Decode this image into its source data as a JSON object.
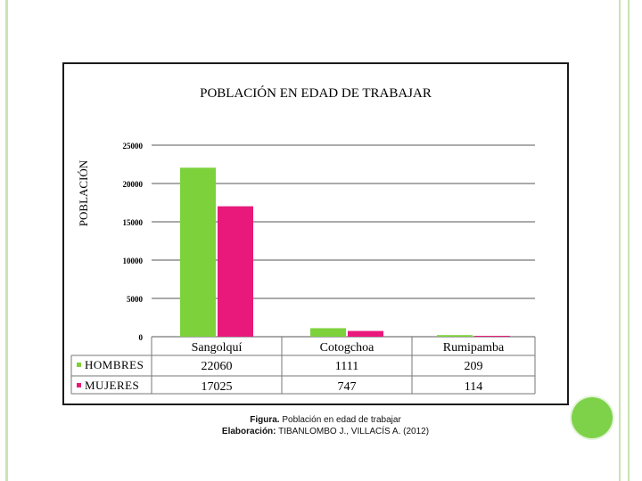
{
  "chart_data": {
    "type": "bar",
    "title": "POBLACIÓN EN EDAD DE TRABAJAR",
    "ylabel": "POBLACIÓN",
    "xlabel": "",
    "ylim": [
      0,
      25000
    ],
    "yticks": [
      0,
      5000,
      10000,
      15000,
      20000,
      25000
    ],
    "grid": true,
    "legend": "bottom-left table",
    "categories": [
      "Sangolquí",
      "Cotogchoa",
      "Rumipamba"
    ],
    "series": [
      {
        "name": "HOMBRES",
        "color": "#7dd23c",
        "values": [
          22060,
          1111,
          209
        ],
        "labels": [
          "22060",
          "1111",
          "209"
        ]
      },
      {
        "name": "MUJERES",
        "color": "#e8197a",
        "values": [
          17025,
          747,
          114
        ],
        "labels": [
          "17025",
          "747",
          "114"
        ]
      }
    ]
  },
  "caption": {
    "line1_bold": "Figura.",
    "line1_text": " Población en edad de trabajar",
    "line2_bold": "Elaboración:",
    "line2_text": " TIBANLOMBO J., VILLACÍS A. (2012)"
  }
}
